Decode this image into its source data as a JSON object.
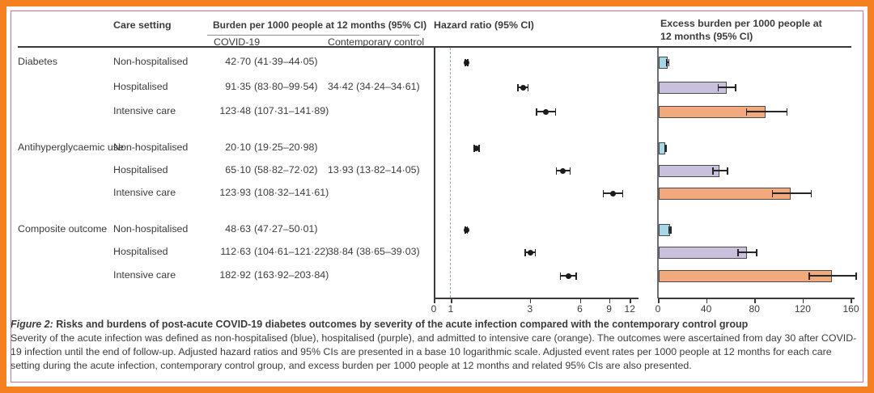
{
  "palette": {
    "non_hospitalised": "#a5d7e6",
    "hospitalised": "#c9c0de",
    "intensive_care": "#f3a97e",
    "bar_border": "#4a4a4a",
    "marker": "#1b1b1b",
    "axis": "#3a3a3a",
    "reference_line": "#93a9b4",
    "outer_border": "#f5801f",
    "inner_border": "#d4718d",
    "text": "#3e3a39"
  },
  "headers": {
    "care_setting": "Care setting",
    "burden": "Burden per 1000 people at 12 months (95% CI)",
    "covid": "COVID-19",
    "control": "Contemporary control",
    "hazard": "Hazard ratio (95% CI)",
    "excess": "Excess burden per 1000 people at 12 months (95% CI)"
  },
  "caption": {
    "figure_label": "Figure 2:",
    "title": " Risks and burdens of post-acute COVID-19 diabetes outcomes by severity of the acute infection compared with the contemporary control group",
    "body": "Severity of the acute infection was defined as non-hospitalised (blue), hospitalised (purple), and admitted to intensive care (orange). The outcomes were ascertained from day 30 after COVID-19 infection until the end of follow-up. Adjusted hazard ratios and 95% CIs are presented in a base 10 logarithmic scale. Adjusted event rates per 1000 people at 12 months for each care setting during the acute infection, contemporary control group, and excess burden per 1000 people at 12 months and related 95% CIs are also presented."
  },
  "chart_data": {
    "type": "forest+bar",
    "hazard_axis": {
      "scale": "log10",
      "ticks": [
        0,
        1,
        3,
        6,
        9,
        12
      ],
      "reference": 1,
      "title": "Hazard ratio (95% CI)"
    },
    "excess_axis": {
      "scale": "linear",
      "ticks": [
        0,
        40,
        80,
        120,
        160
      ],
      "max": 165,
      "title": "Excess burden per 1000 people at 12 months (95% CI)"
    },
    "groups": [
      {
        "outcome": "Diabetes",
        "rows": [
          {
            "care_setting": "Non-hospitalised",
            "covid_burden": "42·70 (41·39–44·05)",
            "control_burden": "",
            "hr": 1.25,
            "hr_ci": [
              1.21,
              1.28
            ],
            "excess": 8.28,
            "excess_ci": [
              6.97,
              9.63
            ]
          },
          {
            "care_setting": "Hospitalised",
            "covid_burden": "91·35 (83·80–99·54)",
            "control_burden": "34·42 (34·24–34·61)",
            "hr": 2.73,
            "hr_ci": [
              2.52,
              2.95
            ],
            "excess": 56.93,
            "excess_ci": [
              49.38,
              65.12
            ]
          },
          {
            "care_setting": "Intensive care",
            "covid_burden": "123·48 (107·31–141·89)",
            "control_burden": "",
            "hr": 3.76,
            "hr_ci": [
              3.26,
              4.33
            ],
            "excess": 89.06,
            "excess_ci": [
              72.89,
              107.47
            ]
          }
        ]
      },
      {
        "outcome": "Antihyperglycaemic use",
        "rows": [
          {
            "care_setting": "Non-hospitalised",
            "covid_burden": "20·10 (19·25–20·98)",
            "control_burden": "",
            "hr": 1.43,
            "hr_ci": [
              1.37,
              1.5
            ],
            "excess": 6.17,
            "excess_ci": [
              5.32,
              7.05
            ]
          },
          {
            "care_setting": "Hospitalised",
            "covid_burden": "65·10 (58·82–72·02)",
            "control_burden": "13·93 (13·82–14·05)",
            "hr": 4.76,
            "hr_ci": [
              4.3,
              5.28
            ],
            "excess": 51.17,
            "excess_ci": [
              44.89,
              58.09
            ]
          },
          {
            "care_setting": "Intensive care",
            "covid_burden": "123·93 (108·32–141·61)",
            "control_burden": "",
            "hr": 9.51,
            "hr_ci": [
              8.22,
              11.0
            ],
            "excess": 110.0,
            "excess_ci": [
              94.39,
              127.68
            ]
          }
        ]
      },
      {
        "outcome": "Composite outcome",
        "rows": [
          {
            "care_setting": "Non-hospitalised",
            "covid_burden": "48·63 (47·27–50·01)",
            "control_burden": "",
            "hr": 1.24,
            "hr_ci": [
              1.21,
              1.27
            ],
            "excess": 9.79,
            "excess_ci": [
              8.43,
              11.17
            ]
          },
          {
            "care_setting": "Hospitalised",
            "covid_burden": "112·63 (104·61–121·22)",
            "control_burden": "38·84 (38·65–39·03)",
            "hr": 3.02,
            "hr_ci": [
              2.79,
              3.26
            ],
            "excess": 73.79,
            "excess_ci": [
              65.77,
              82.38
            ]
          },
          {
            "care_setting": "Intensive care",
            "covid_burden": "182·92 (163·92–203·84)",
            "control_burden": "",
            "hr": 5.12,
            "hr_ci": [
              4.55,
              5.76
            ],
            "excess": 144.08,
            "excess_ci": [
              125.08,
              165.0
            ]
          }
        ]
      }
    ]
  }
}
